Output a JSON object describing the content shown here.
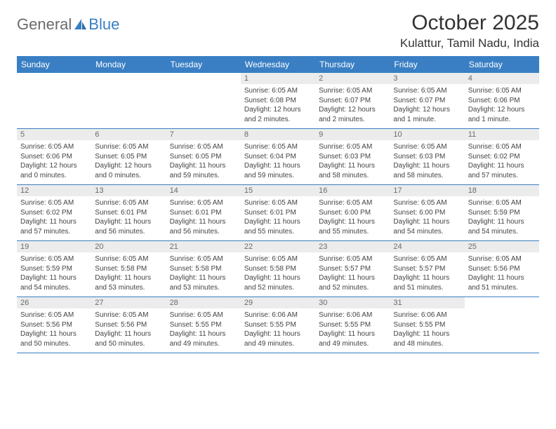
{
  "logo": {
    "general": "General",
    "blue": "Blue"
  },
  "title": "October 2025",
  "location": "Kulattur, Tamil Nadu, India",
  "dayHeaders": [
    "Sunday",
    "Monday",
    "Tuesday",
    "Wednesday",
    "Thursday",
    "Friday",
    "Saturday"
  ],
  "colors": {
    "headerBg": "#3a7fc4",
    "headerText": "#ffffff",
    "dayNumBg": "#ececec",
    "dayNumText": "#6b6b6b",
    "borderColor": "#3a7fc4",
    "logoGray": "#6b6b6b",
    "logoBlue": "#3a7fc4"
  },
  "weeks": [
    [
      {
        "n": "",
        "sr": "",
        "ss": "",
        "dl": ""
      },
      {
        "n": "",
        "sr": "",
        "ss": "",
        "dl": ""
      },
      {
        "n": "",
        "sr": "",
        "ss": "",
        "dl": ""
      },
      {
        "n": "1",
        "sr": "Sunrise: 6:05 AM",
        "ss": "Sunset: 6:08 PM",
        "dl": "Daylight: 12 hours and 2 minutes."
      },
      {
        "n": "2",
        "sr": "Sunrise: 6:05 AM",
        "ss": "Sunset: 6:07 PM",
        "dl": "Daylight: 12 hours and 2 minutes."
      },
      {
        "n": "3",
        "sr": "Sunrise: 6:05 AM",
        "ss": "Sunset: 6:07 PM",
        "dl": "Daylight: 12 hours and 1 minute."
      },
      {
        "n": "4",
        "sr": "Sunrise: 6:05 AM",
        "ss": "Sunset: 6:06 PM",
        "dl": "Daylight: 12 hours and 1 minute."
      }
    ],
    [
      {
        "n": "5",
        "sr": "Sunrise: 6:05 AM",
        "ss": "Sunset: 6:06 PM",
        "dl": "Daylight: 12 hours and 0 minutes."
      },
      {
        "n": "6",
        "sr": "Sunrise: 6:05 AM",
        "ss": "Sunset: 6:05 PM",
        "dl": "Daylight: 12 hours and 0 minutes."
      },
      {
        "n": "7",
        "sr": "Sunrise: 6:05 AM",
        "ss": "Sunset: 6:05 PM",
        "dl": "Daylight: 11 hours and 59 minutes."
      },
      {
        "n": "8",
        "sr": "Sunrise: 6:05 AM",
        "ss": "Sunset: 6:04 PM",
        "dl": "Daylight: 11 hours and 59 minutes."
      },
      {
        "n": "9",
        "sr": "Sunrise: 6:05 AM",
        "ss": "Sunset: 6:03 PM",
        "dl": "Daylight: 11 hours and 58 minutes."
      },
      {
        "n": "10",
        "sr": "Sunrise: 6:05 AM",
        "ss": "Sunset: 6:03 PM",
        "dl": "Daylight: 11 hours and 58 minutes."
      },
      {
        "n": "11",
        "sr": "Sunrise: 6:05 AM",
        "ss": "Sunset: 6:02 PM",
        "dl": "Daylight: 11 hours and 57 minutes."
      }
    ],
    [
      {
        "n": "12",
        "sr": "Sunrise: 6:05 AM",
        "ss": "Sunset: 6:02 PM",
        "dl": "Daylight: 11 hours and 57 minutes."
      },
      {
        "n": "13",
        "sr": "Sunrise: 6:05 AM",
        "ss": "Sunset: 6:01 PM",
        "dl": "Daylight: 11 hours and 56 minutes."
      },
      {
        "n": "14",
        "sr": "Sunrise: 6:05 AM",
        "ss": "Sunset: 6:01 PM",
        "dl": "Daylight: 11 hours and 56 minutes."
      },
      {
        "n": "15",
        "sr": "Sunrise: 6:05 AM",
        "ss": "Sunset: 6:01 PM",
        "dl": "Daylight: 11 hours and 55 minutes."
      },
      {
        "n": "16",
        "sr": "Sunrise: 6:05 AM",
        "ss": "Sunset: 6:00 PM",
        "dl": "Daylight: 11 hours and 55 minutes."
      },
      {
        "n": "17",
        "sr": "Sunrise: 6:05 AM",
        "ss": "Sunset: 6:00 PM",
        "dl": "Daylight: 11 hours and 54 minutes."
      },
      {
        "n": "18",
        "sr": "Sunrise: 6:05 AM",
        "ss": "Sunset: 5:59 PM",
        "dl": "Daylight: 11 hours and 54 minutes."
      }
    ],
    [
      {
        "n": "19",
        "sr": "Sunrise: 6:05 AM",
        "ss": "Sunset: 5:59 PM",
        "dl": "Daylight: 11 hours and 54 minutes."
      },
      {
        "n": "20",
        "sr": "Sunrise: 6:05 AM",
        "ss": "Sunset: 5:58 PM",
        "dl": "Daylight: 11 hours and 53 minutes."
      },
      {
        "n": "21",
        "sr": "Sunrise: 6:05 AM",
        "ss": "Sunset: 5:58 PM",
        "dl": "Daylight: 11 hours and 53 minutes."
      },
      {
        "n": "22",
        "sr": "Sunrise: 6:05 AM",
        "ss": "Sunset: 5:58 PM",
        "dl": "Daylight: 11 hours and 52 minutes."
      },
      {
        "n": "23",
        "sr": "Sunrise: 6:05 AM",
        "ss": "Sunset: 5:57 PM",
        "dl": "Daylight: 11 hours and 52 minutes."
      },
      {
        "n": "24",
        "sr": "Sunrise: 6:05 AM",
        "ss": "Sunset: 5:57 PM",
        "dl": "Daylight: 11 hours and 51 minutes."
      },
      {
        "n": "25",
        "sr": "Sunrise: 6:05 AM",
        "ss": "Sunset: 5:56 PM",
        "dl": "Daylight: 11 hours and 51 minutes."
      }
    ],
    [
      {
        "n": "26",
        "sr": "Sunrise: 6:05 AM",
        "ss": "Sunset: 5:56 PM",
        "dl": "Daylight: 11 hours and 50 minutes."
      },
      {
        "n": "27",
        "sr": "Sunrise: 6:05 AM",
        "ss": "Sunset: 5:56 PM",
        "dl": "Daylight: 11 hours and 50 minutes."
      },
      {
        "n": "28",
        "sr": "Sunrise: 6:05 AM",
        "ss": "Sunset: 5:55 PM",
        "dl": "Daylight: 11 hours and 49 minutes."
      },
      {
        "n": "29",
        "sr": "Sunrise: 6:06 AM",
        "ss": "Sunset: 5:55 PM",
        "dl": "Daylight: 11 hours and 49 minutes."
      },
      {
        "n": "30",
        "sr": "Sunrise: 6:06 AM",
        "ss": "Sunset: 5:55 PM",
        "dl": "Daylight: 11 hours and 49 minutes."
      },
      {
        "n": "31",
        "sr": "Sunrise: 6:06 AM",
        "ss": "Sunset: 5:55 PM",
        "dl": "Daylight: 11 hours and 48 minutes."
      },
      {
        "n": "",
        "sr": "",
        "ss": "",
        "dl": ""
      }
    ]
  ]
}
